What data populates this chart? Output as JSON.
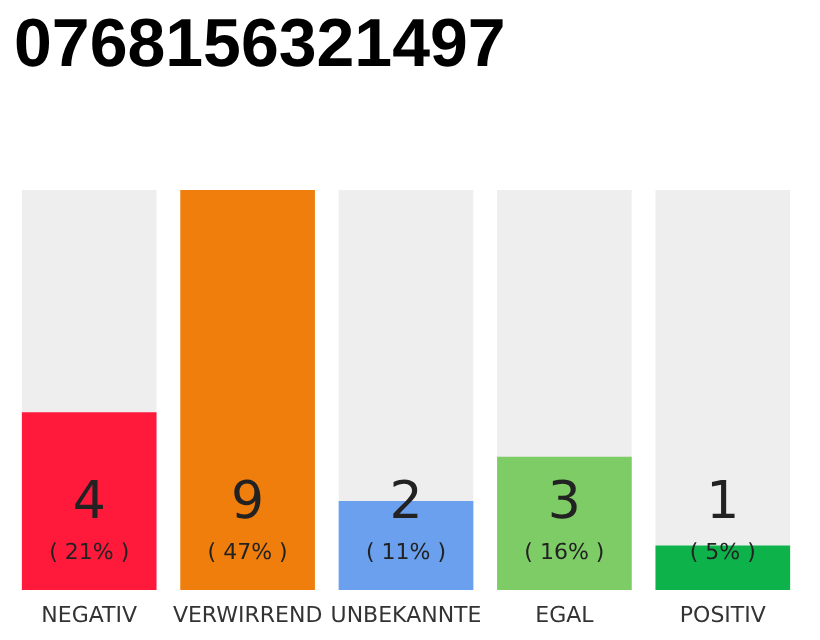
{
  "chart_data": {
    "type": "bar",
    "title": "0768156321497",
    "categories": [
      "NEGATIV",
      "VERWIRREND",
      "UNBEKANNTE",
      "EGAL",
      "POSITIV"
    ],
    "values": [
      4,
      9,
      2,
      3,
      1
    ],
    "colors": [
      "#ff1a3c",
      "#f07e0c",
      "#6aa0ee",
      "#7dcc66",
      "#0db34a"
    ],
    "value_labels": [
      "4\n( 21% )",
      "9\n( 47% )",
      "2\n( 11% )",
      "3\n( 16% )",
      "1\n( 5% )"
    ]
  }
}
